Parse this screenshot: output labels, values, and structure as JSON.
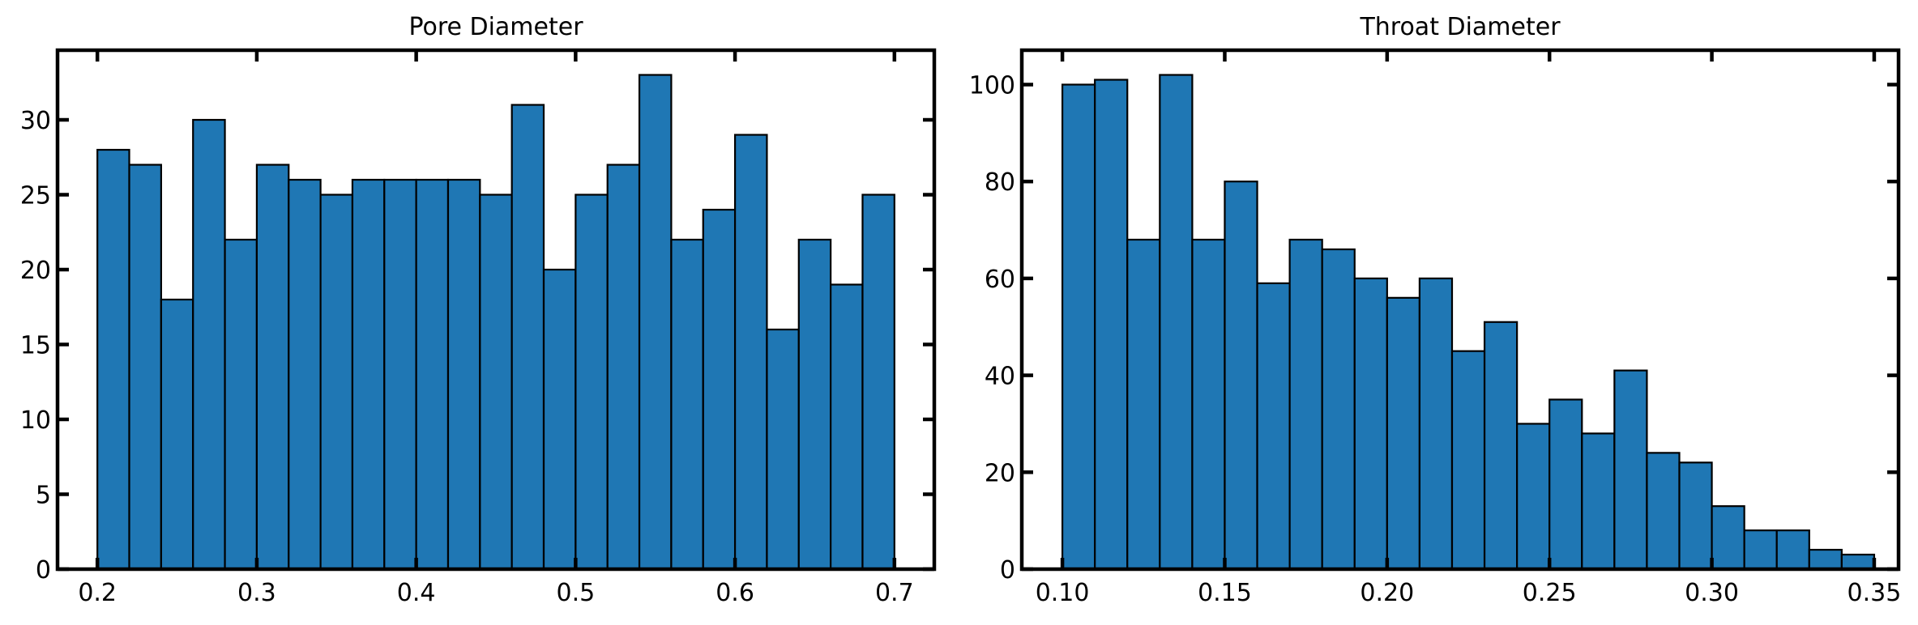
{
  "colors": {
    "bar_fill": "#1f77b4",
    "bar_edge": "#000000",
    "axes": "#000000",
    "background": "#ffffff"
  },
  "chart_data": [
    {
      "type": "bar",
      "title": "Pore Diameter",
      "xlabel": "",
      "ylabel": "",
      "grid": false,
      "bin_edges": [
        0.2,
        0.22,
        0.24,
        0.26,
        0.28,
        0.3,
        0.32,
        0.34,
        0.36,
        0.38,
        0.4,
        0.42,
        0.44,
        0.46,
        0.48,
        0.5,
        0.52,
        0.54,
        0.56,
        0.58,
        0.6,
        0.62,
        0.64,
        0.66,
        0.68,
        0.7
      ],
      "values": [
        28,
        27,
        18,
        30,
        22,
        27,
        26,
        25,
        26,
        26,
        26,
        26,
        25,
        31,
        20,
        25,
        27,
        33,
        22,
        24,
        29,
        16,
        22,
        19,
        25
      ],
      "xlim": [
        0.175,
        0.725
      ],
      "ylim": [
        0,
        34.65
      ],
      "xticks": [
        0.2,
        0.3,
        0.4,
        0.5,
        0.6,
        0.7
      ],
      "xtick_labels": [
        "0.2",
        "0.3",
        "0.4",
        "0.5",
        "0.6",
        "0.7"
      ],
      "yticks": [
        0,
        5,
        10,
        15,
        20,
        25,
        30
      ],
      "ytick_labels": [
        "0",
        "5",
        "10",
        "15",
        "20",
        "25",
        "30"
      ]
    },
    {
      "type": "bar",
      "title": "Throat Diameter",
      "xlabel": "",
      "ylabel": "",
      "grid": false,
      "bin_edges": [
        0.1,
        0.11,
        0.12,
        0.13,
        0.14,
        0.15,
        0.16,
        0.17,
        0.18,
        0.19,
        0.2,
        0.21,
        0.22,
        0.23,
        0.24,
        0.25,
        0.26,
        0.27,
        0.28,
        0.29,
        0.3,
        0.31,
        0.32,
        0.33,
        0.34,
        0.35
      ],
      "values": [
        100,
        101,
        68,
        102,
        68,
        80,
        59,
        68,
        66,
        60,
        56,
        60,
        45,
        51,
        30,
        35,
        28,
        41,
        24,
        22,
        13,
        8,
        8,
        4,
        3
      ],
      "xlim": [
        0.0875,
        0.3575
      ],
      "ylim": [
        0,
        107.1
      ],
      "xticks": [
        0.1,
        0.15,
        0.2,
        0.25,
        0.3,
        0.35
      ],
      "xtick_labels": [
        "0.10",
        "0.15",
        "0.20",
        "0.25",
        "0.30",
        "0.35"
      ],
      "yticks": [
        0,
        20,
        40,
        60,
        80,
        100
      ],
      "ytick_labels": [
        "0",
        "20",
        "40",
        "60",
        "80",
        "100"
      ]
    }
  ]
}
